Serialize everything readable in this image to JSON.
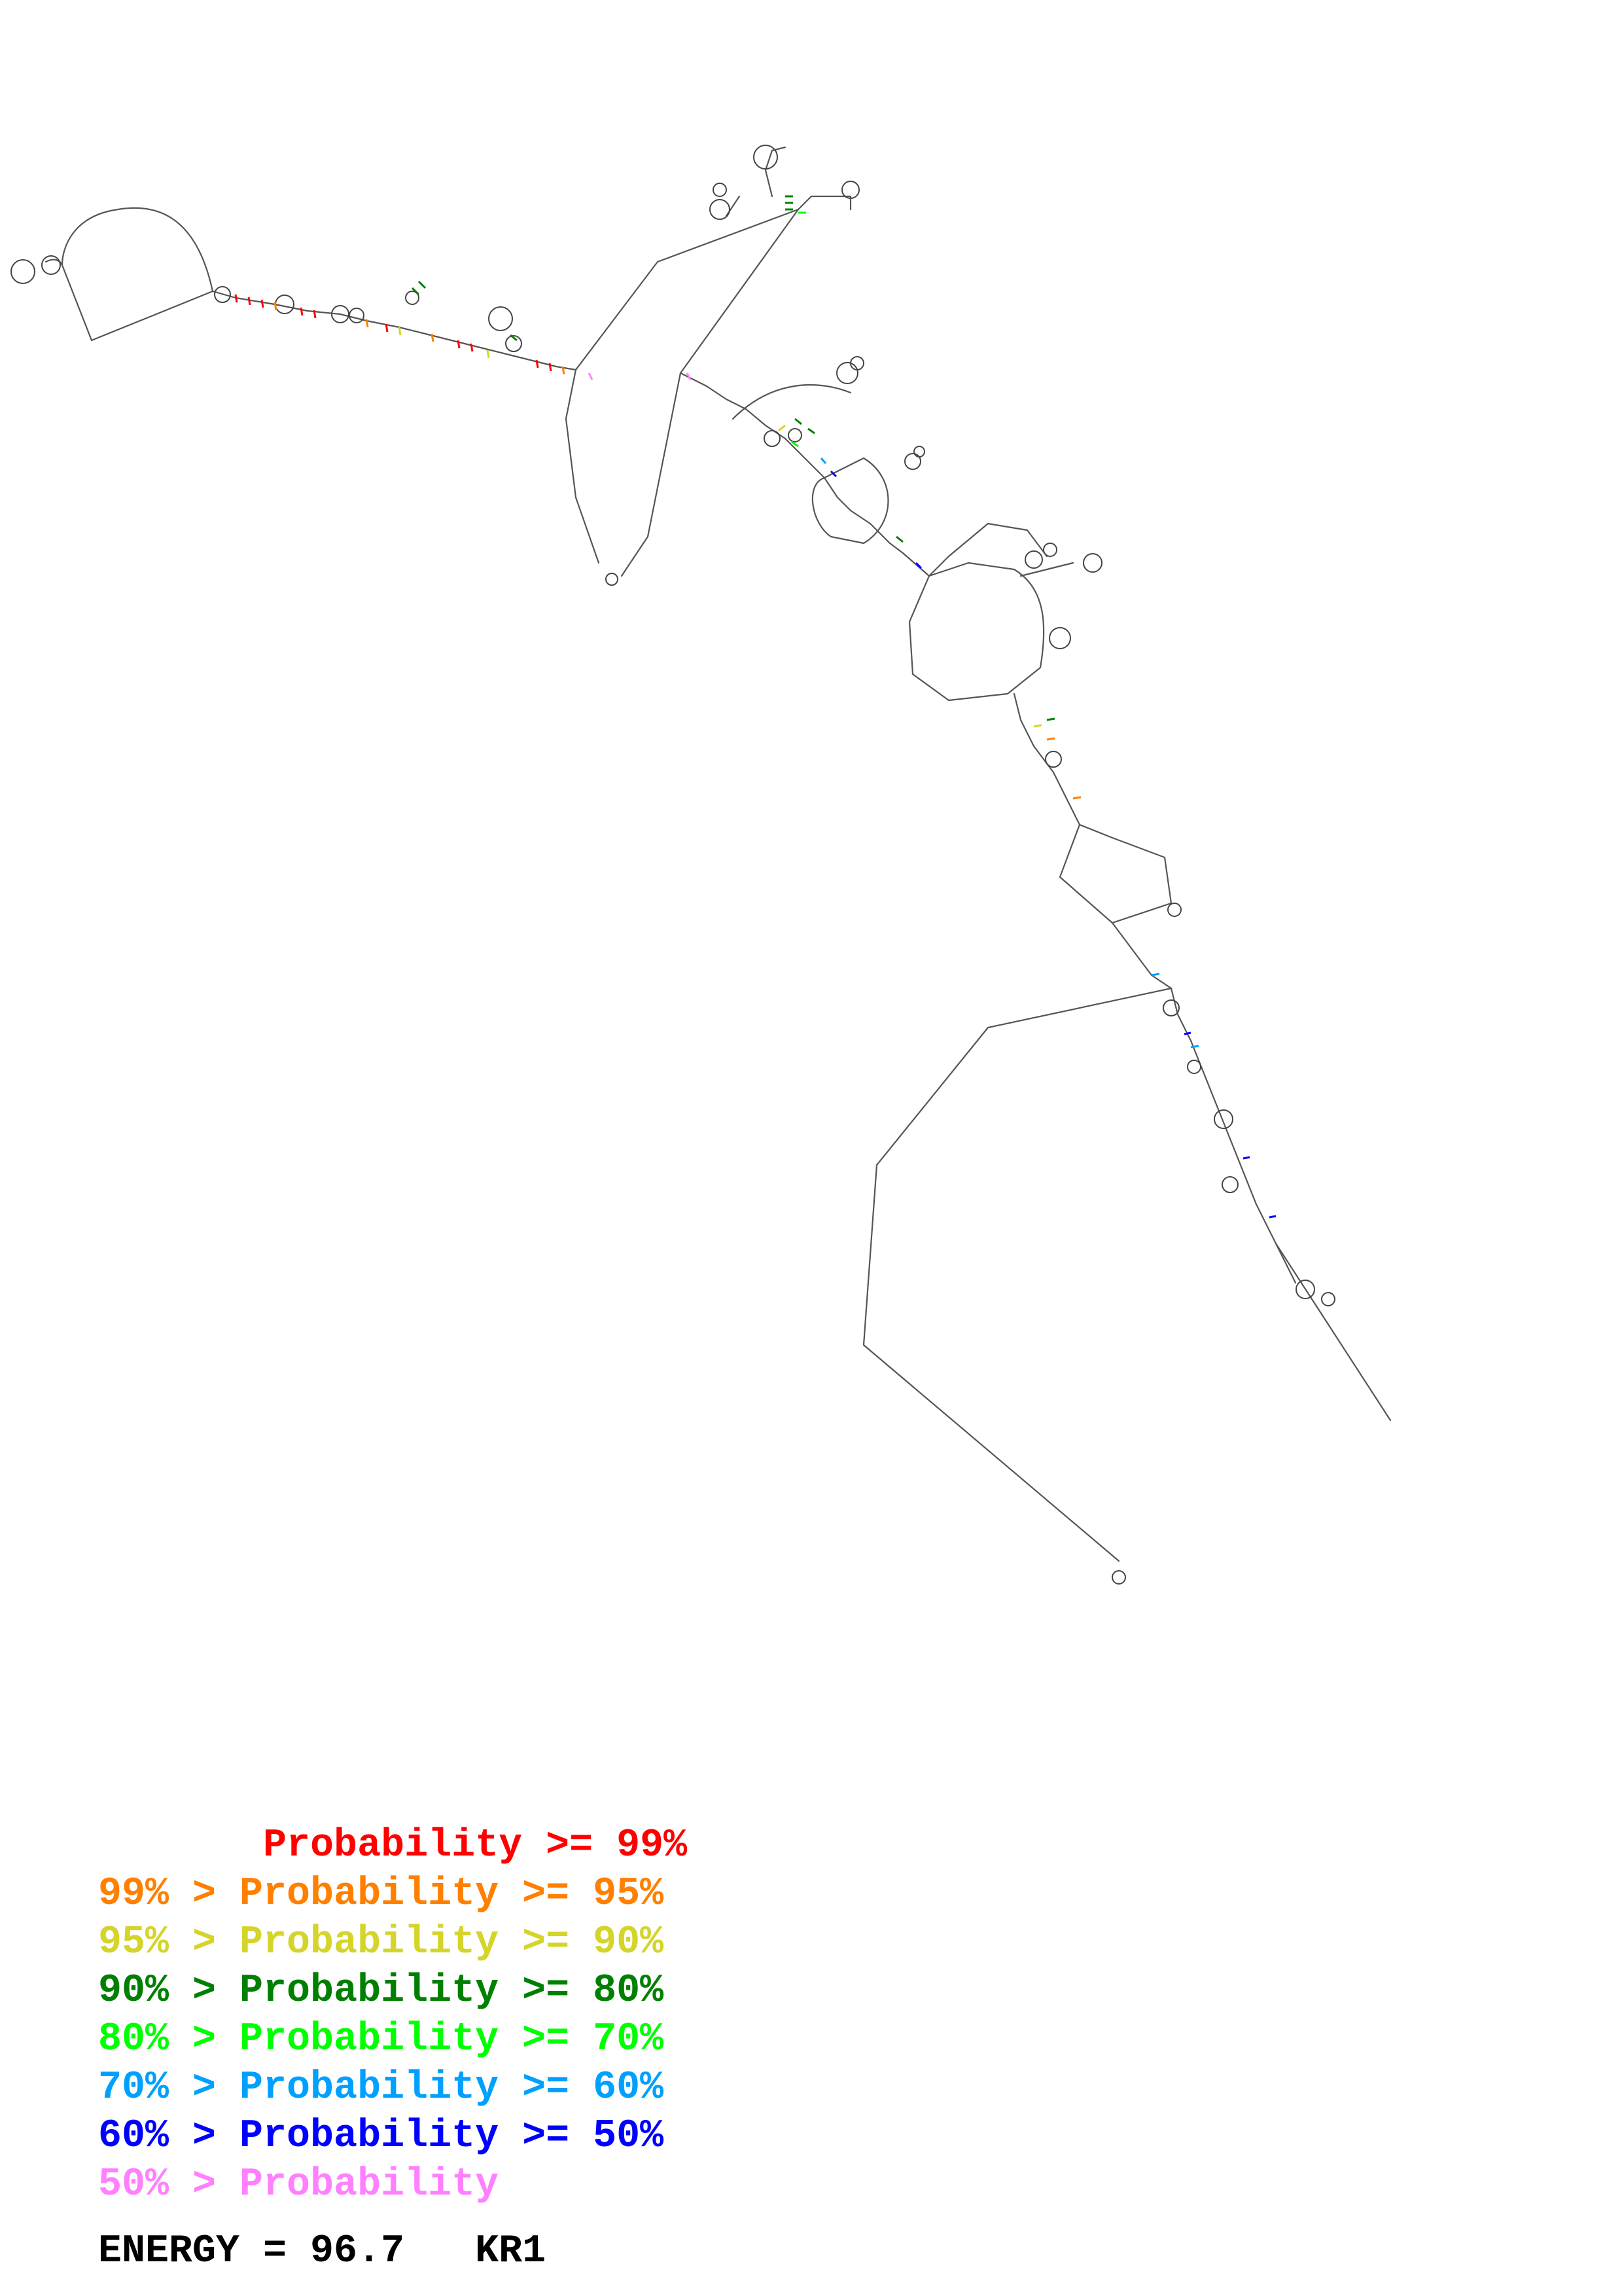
{
  "legend": [
    {
      "text": "       Probability >= 99%",
      "color": "#ff0000"
    },
    {
      "text": "99% > Probability >= 95%",
      "color": "#ff8000"
    },
    {
      "text": "95% > Probability >= 90%",
      "color": "#d4d42a"
    },
    {
      "text": "90% > Probability >= 80%",
      "color": "#008000"
    },
    {
      "text": "80% > Probability >= 70%",
      "color": "#00ff00"
    },
    {
      "text": "70% > Probability >= 60%",
      "color": "#00a0ff"
    },
    {
      "text": "60% > Probability >= 50%",
      "color": "#0000ff"
    },
    {
      "text": "50% > Probability",
      "color": "#ff80ff"
    }
  ],
  "energy_label": "ENERGY = 96.7   KR1",
  "colors": {
    "backbone": "#555555",
    "background": "#ffffff"
  }
}
